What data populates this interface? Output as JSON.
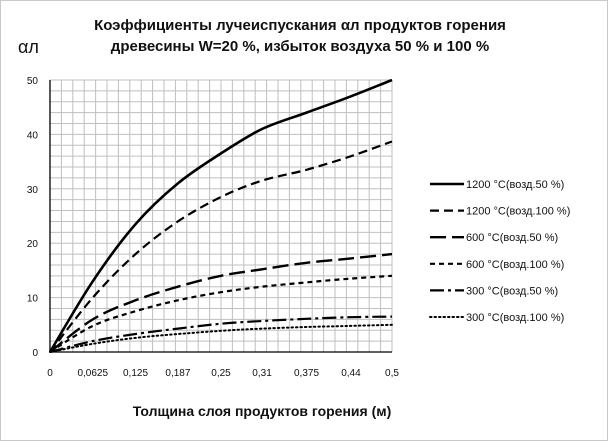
{
  "chart_data": {
    "type": "line",
    "title_line1": "Коэффициенты  лучеиспускания αл продуктов  горения",
    "title_line2": "древесины W=20 %, избыток  воздуха  50 % и 100 %",
    "ylabel": "αл",
    "xlabel": "Толщина  слоя  продуктов горения (м)",
    "categories": [
      "0",
      "0,0625",
      "0,125",
      "0,187",
      "0,25",
      "0,31",
      "0,375",
      "0,44",
      "0,5"
    ],
    "x": [
      0,
      0.0625,
      0.125,
      0.187,
      0.25,
      0.31,
      0.375,
      0.44,
      0.5
    ],
    "ylim": [
      0,
      50
    ],
    "yticks": [
      "0",
      "10",
      "20",
      "30",
      "40",
      "50"
    ],
    "grid": true,
    "legend_position": "right",
    "series": [
      {
        "name": "1200 °С(возд.50 %)",
        "style": "solid",
        "width": 2.6,
        "values": [
          0,
          13,
          23.5,
          31,
          36.5,
          41,
          44,
          47,
          50
        ]
      },
      {
        "name": "1200 °С(возд.100 %)",
        "style": "dash",
        "width": 2.2,
        "values": [
          0,
          10,
          18,
          24,
          28.5,
          31.5,
          33.5,
          36,
          38.7
        ]
      },
      {
        "name": "600 °С(возд.50 %)",
        "style": "longdash",
        "width": 2.4,
        "values": [
          0,
          6,
          9.5,
          12,
          14,
          15.2,
          16.4,
          17.2,
          18
        ]
      },
      {
        "name": "600 °С(возд.100 %)",
        "style": "shortdash",
        "width": 2.2,
        "values": [
          0,
          4.8,
          7.5,
          9.5,
          11,
          12,
          12.8,
          13.5,
          14
        ]
      },
      {
        "name": "300 °С(возд.50 %)",
        "style": "dashdot",
        "width": 2.2,
        "values": [
          0,
          2,
          3.3,
          4.3,
          5.2,
          5.7,
          6.1,
          6.4,
          6.5
        ]
      },
      {
        "name": "300 °С(возд.100 %)",
        "style": "dot",
        "width": 2.0,
        "values": [
          0,
          1.5,
          2.6,
          3.3,
          3.9,
          4.3,
          4.6,
          4.8,
          5
        ]
      }
    ]
  }
}
